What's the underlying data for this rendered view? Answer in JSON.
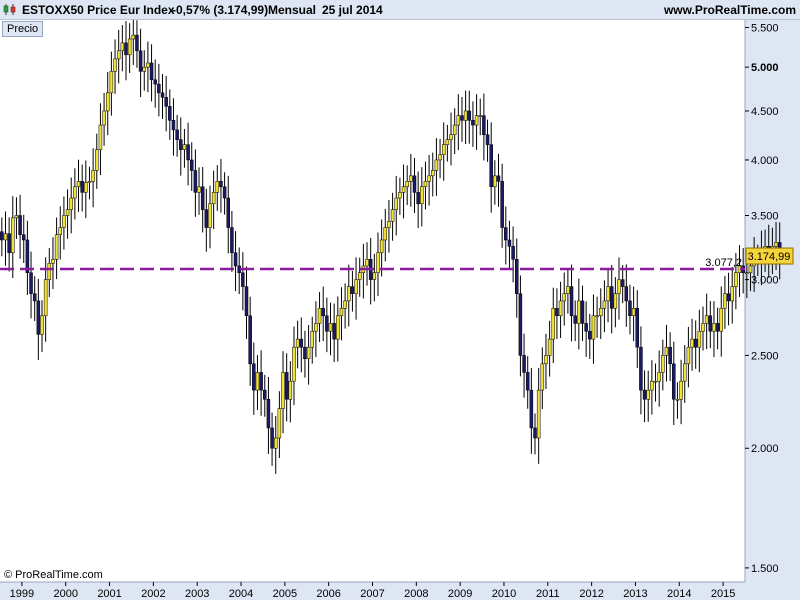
{
  "header": {
    "instrument": "ESTOXX50 Price Eur Index",
    "change": "-0,57% (3.174,99)",
    "period": "Mensual",
    "date": "25 jul 2014",
    "site": "www.ProRealTime.com"
  },
  "panel": {
    "label": "Precio"
  },
  "footer": {
    "credit": "© ProRealTime.com"
  },
  "colors": {
    "up_candle": "#f2e234",
    "down_candle": "#1a1a66",
    "wick": "#000000",
    "reference_line": "#8b1a9e",
    "price_tag": "#f5d33b",
    "axis_panel": "#dfe6f3"
  },
  "chart_data": {
    "type": "candlestick",
    "scale": "log",
    "ylim": [
      1450,
      5600
    ],
    "y_ticks": [
      {
        "value": 5500,
        "label": "5.500",
        "bold": false
      },
      {
        "value": 5000,
        "label": "5.000",
        "bold": true
      },
      {
        "value": 4500,
        "label": "4.500",
        "bold": false
      },
      {
        "value": 4000,
        "label": "4.000",
        "bold": false
      },
      {
        "value": 3500,
        "label": "3.500",
        "bold": false
      },
      {
        "value": 3000,
        "label": "3.000",
        "bold": false
      },
      {
        "value": 2500,
        "label": "2.500",
        "bold": false
      },
      {
        "value": 2000,
        "label": "2.000",
        "bold": false
      },
      {
        "value": 1500,
        "label": "1.500",
        "bold": false
      }
    ],
    "x_ticks": [
      "1999",
      "2000",
      "2001",
      "2002",
      "2003",
      "2004",
      "2005",
      "2006",
      "2007",
      "2008",
      "2009",
      "2010",
      "2011",
      "2012",
      "2013",
      "2014",
      "2015"
    ],
    "x_start_year": 1998.5,
    "x_end_year": 2015.5,
    "reference_line": {
      "value": 3077.2,
      "label": "3.077,2",
      "style": "dashed"
    },
    "last_price": {
      "value": 3174.99,
      "label": "3.174,99"
    },
    "series": [
      {
        "name": "Precio",
        "close": [
          3300,
          3350,
          3200,
          3480,
          3500,
          3342,
          3300,
          3050,
          2900,
          2850,
          2630,
          2750,
          3000,
          3120,
          3150,
          3342,
          3400,
          3500,
          3550,
          3650,
          3750,
          3800,
          3700,
          3788,
          3800,
          3900,
          4100,
          4350,
          4500,
          4700,
          4950,
          5100,
          5200,
          5300,
          5150,
          5350,
          5400,
          5200,
          4950,
          5000,
          5050,
          4850,
          4800,
          4700,
          4650,
          4550,
          4400,
          4300,
          4200,
          4100,
          4150,
          4000,
          3900,
          3700,
          3750,
          3550,
          3400,
          3600,
          3700,
          3800,
          3750,
          3650,
          3400,
          3200,
          3100,
          3050,
          2950,
          2750,
          2450,
          2300,
          2400,
          2300,
          2250,
          2100,
          2000,
          2050,
          2200,
          2400,
          2250,
          2350,
          2550,
          2600,
          2550,
          2480,
          2550,
          2650,
          2700,
          2800,
          2750,
          2650,
          2700,
          2600,
          2750,
          2800,
          2850,
          2950,
          2900,
          3000,
          3050,
          3100,
          3150,
          3000,
          3050,
          3200,
          3300,
          3400,
          3450,
          3550,
          3650,
          3700,
          3750,
          3800,
          3850,
          3700,
          3600,
          3750,
          3800,
          3850,
          3900,
          4000,
          4050,
          4150,
          4200,
          4250,
          4350,
          4450,
          4400,
          4500,
          4400,
          4350,
          4450,
          4450,
          4250,
          4150,
          3750,
          3850,
          3800,
          3400,
          3300,
          3250,
          3150,
          2900,
          2500,
          2400,
          2300,
          2100,
          2050,
          2300,
          2450,
          2500,
          2600,
          2800,
          2750,
          2850,
          2900,
          2950,
          2750,
          2700,
          2850,
          2700,
          2650,
          2600,
          2750,
          2750,
          2800,
          2850,
          2950,
          2800,
          2900,
          3000,
          2950,
          2850,
          2750,
          2800,
          2550,
          2300,
          2250,
          2300,
          2350,
          2350,
          2400,
          2500,
          2550,
          2450,
          2250,
          2250,
          2350,
          2450,
          2550,
          2600,
          2550,
          2650,
          2700,
          2750,
          2650,
          2700,
          2650,
          2800,
          2900,
          2850,
          2950,
          3050,
          3100,
          3050,
          3050,
          3100,
          3150,
          3150,
          3200,
          3250,
          3200,
          3250,
          3280,
          3175
        ]
      }
    ]
  }
}
